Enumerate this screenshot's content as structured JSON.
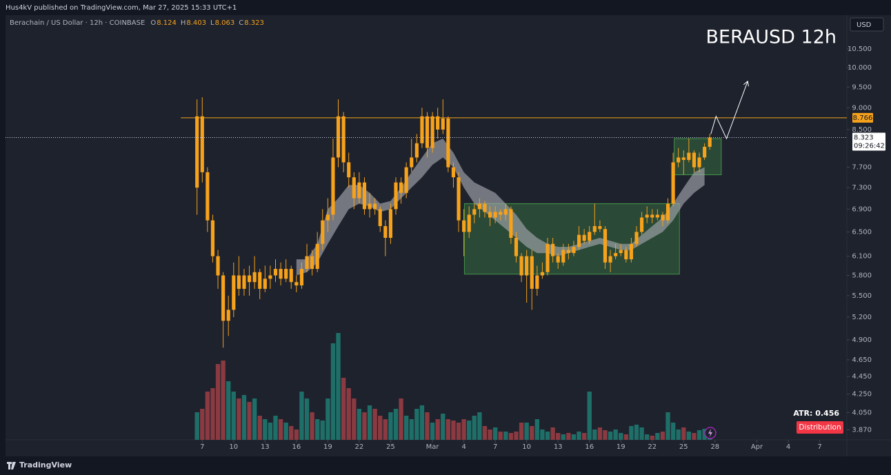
{
  "header": {
    "publisher": "Hus4kV published on TradingView.com, Mar 27, 2025 15:33 UTC+1"
  },
  "footer": {
    "brand": "TradingView"
  },
  "chart_data": {
    "type": "candlestick",
    "title": "BERAUSD 12h",
    "legend_title": "Berachain / US Dollar · 12h · COINBASE",
    "ohlc_labels": [
      "O",
      "H",
      "L",
      "C"
    ],
    "currency": "USD",
    "countdown": "09:26:42",
    "candle_color": "#f7a21b",
    "up_volume_color": "#1f6f69",
    "down_volume_color": "#8a3a40",
    "cloud_color": "#a3a6ad",
    "zone_color": "#4caf50",
    "resistance_color": "#f7a21b",
    "log_scale": true,
    "grid": false,
    "xlim": [
      -18.8,
      61.6
    ],
    "ylim": [
      3.77,
      11.47
    ],
    "volume_ylim": [
      0,
      160
    ],
    "xticks": [
      {
        "value": 0,
        "label": "7"
      },
      {
        "value": 3,
        "label": "10"
      },
      {
        "value": 6,
        "label": "13"
      },
      {
        "value": 9,
        "label": "16"
      },
      {
        "value": 12,
        "label": "19"
      },
      {
        "value": 15,
        "label": "22"
      },
      {
        "value": 18,
        "label": "25"
      },
      {
        "value": 22,
        "label": "Mar"
      },
      {
        "value": 25,
        "label": "4"
      },
      {
        "value": 28,
        "label": "7"
      },
      {
        "value": 31,
        "label": "10"
      },
      {
        "value": 34,
        "label": "13"
      },
      {
        "value": 37,
        "label": "16"
      },
      {
        "value": 40,
        "label": "19"
      },
      {
        "value": 43,
        "label": "22"
      },
      {
        "value": 46,
        "label": "25"
      },
      {
        "value": 49,
        "label": "28"
      },
      {
        "value": 53,
        "label": "Apr"
      },
      {
        "value": 56,
        "label": "4"
      },
      {
        "value": 59,
        "label": "7"
      }
    ],
    "yticks": [
      {
        "value": 10.5,
        "label": "10.500"
      },
      {
        "value": 10,
        "label": "10.000"
      },
      {
        "value": 9.5,
        "label": "9.500"
      },
      {
        "value": 9,
        "label": "9.000"
      },
      {
        "value": 8.5,
        "label": "8.500"
      },
      {
        "value": 7.7,
        "label": "7.700"
      },
      {
        "value": 7.3,
        "label": "7.300"
      },
      {
        "value": 6.9,
        "label": "6.900"
      },
      {
        "value": 6.5,
        "label": "6.500"
      },
      {
        "value": 6.1,
        "label": "6.100"
      },
      {
        "value": 5.8,
        "label": "5.800"
      },
      {
        "value": 5.5,
        "label": "5.500"
      },
      {
        "value": 5.2,
        "label": "5.200"
      },
      {
        "value": 4.9,
        "label": "4.900"
      },
      {
        "value": 4.65,
        "label": "4.650"
      },
      {
        "value": 4.45,
        "label": "4.450"
      },
      {
        "value": 4.25,
        "label": "4.250"
      },
      {
        "value": 4.05,
        "label": "4.050"
      },
      {
        "value": 3.87,
        "label": "3.870"
      }
    ],
    "x": [
      -0.5,
      0,
      0.5,
      1,
      1.5,
      2,
      2.5,
      3,
      3.5,
      4,
      4.5,
      5,
      5.5,
      6,
      6.5,
      7,
      7.5,
      8,
      8.5,
      9,
      9.5,
      10,
      10.5,
      11,
      11.5,
      12,
      12.5,
      13,
      13.5,
      14,
      14.5,
      15,
      15.5,
      16,
      16.5,
      17,
      17.5,
      18,
      18.5,
      19,
      19.5,
      20,
      20.5,
      21,
      21.5,
      22,
      22.5,
      23,
      23.5,
      24,
      24.5,
      25,
      25.5,
      26,
      26.5,
      27,
      27.5,
      28,
      28.5,
      29,
      29.5,
      30,
      30.5,
      31,
      31.5,
      32,
      32.5,
      33,
      33.5,
      34,
      34.5,
      35,
      35.5,
      36,
      36.5,
      37,
      37.5,
      38,
      38.5,
      39,
      39.5,
      40,
      40.5,
      41,
      41.5,
      42,
      42.5,
      43,
      43.5,
      44,
      44.5,
      45,
      45.5,
      46,
      46.5,
      47,
      47.5,
      48,
      48.5
    ],
    "open": [
      7.3,
      8.8,
      7.6,
      6.7,
      6.1,
      5.8,
      5.15,
      5.3,
      5.8,
      5.6,
      5.8,
      5.7,
      5.85,
      5.6,
      5.75,
      5.8,
      5.9,
      5.75,
      5.9,
      5.7,
      5.65,
      5.9,
      6.1,
      5.9,
      6.3,
      6.7,
      6.8,
      7.9,
      8.8,
      7.8,
      7.5,
      7.1,
      7.4,
      6.9,
      7.0,
      6.9,
      6.6,
      6.4,
      6.9,
      7.4,
      7.2,
      7.7,
      7.9,
      8.2,
      8.8,
      8.1,
      8.8,
      8.5,
      8.75,
      7.7,
      7.5,
      6.7,
      6.5,
      6.8,
      6.9,
      7.0,
      6.85,
      6.75,
      6.85,
      6.8,
      6.9,
      6.4,
      6.1,
      5.8,
      6.1,
      5.6,
      5.8,
      5.85,
      6.3,
      6.1,
      6.0,
      6.2,
      6.15,
      6.25,
      6.45,
      6.35,
      6.5,
      6.6,
      6.55,
      6.0,
      6.1,
      6.15,
      6.2,
      6.05,
      6.3,
      6.5,
      6.75,
      6.8,
      6.75,
      6.8,
      6.7,
      7.0,
      7.8,
      7.9,
      7.85,
      8.0,
      7.7,
      7.9,
      8.124
    ],
    "high": [
      9.2,
      9.25,
      7.7,
      6.8,
      6.2,
      5.85,
      5.5,
      6.0,
      6.1,
      5.9,
      5.95,
      6.1,
      5.9,
      5.95,
      5.95,
      6.05,
      6.0,
      6.05,
      5.95,
      5.8,
      6.0,
      6.3,
      6.2,
      6.5,
      6.9,
      7.1,
      8.3,
      9.2,
      8.9,
      8.0,
      7.6,
      7.6,
      7.5,
      7.2,
      7.1,
      6.95,
      6.7,
      7.0,
      7.5,
      7.5,
      7.8,
      8.3,
      8.4,
      9.0,
      8.9,
      8.9,
      9.0,
      9.2,
      8.8,
      7.8,
      7.6,
      6.9,
      6.95,
      7.0,
      7.1,
      7.05,
      6.95,
      6.95,
      6.9,
      7.0,
      6.95,
      6.5,
      6.15,
      6.2,
      6.2,
      5.95,
      6.0,
      6.4,
      6.4,
      6.15,
      6.3,
      6.3,
      6.35,
      6.6,
      6.55,
      6.6,
      7.0,
      6.7,
      6.6,
      6.2,
      6.3,
      6.3,
      6.25,
      6.4,
      6.6,
      6.85,
      6.95,
      6.9,
      6.9,
      6.85,
      7.1,
      8.0,
      8.1,
      8.05,
      8.3,
      8.05,
      8.0,
      8.2,
      8.403
    ],
    "low": [
      6.8,
      7.4,
      6.5,
      6.0,
      5.6,
      4.8,
      4.95,
      5.2,
      5.5,
      5.5,
      5.5,
      5.6,
      5.45,
      5.55,
      5.6,
      5.7,
      5.65,
      5.7,
      5.6,
      5.55,
      5.6,
      5.85,
      5.8,
      5.85,
      6.2,
      6.5,
      6.7,
      7.7,
      7.6,
      7.3,
      6.9,
      7.0,
      6.8,
      6.75,
      6.8,
      6.5,
      6.1,
      6.3,
      6.8,
      7.0,
      7.1,
      7.6,
      7.8,
      8.1,
      7.9,
      8.0,
      8.3,
      8.4,
      7.6,
      7.3,
      6.5,
      6.1,
      6.4,
      6.65,
      6.75,
      6.75,
      6.6,
      6.65,
      6.7,
      6.7,
      6.3,
      6.0,
      5.7,
      5.4,
      5.3,
      5.5,
      5.75,
      5.8,
      6.0,
      5.9,
      5.95,
      6.05,
      6.1,
      6.2,
      6.3,
      6.3,
      6.45,
      6.5,
      5.9,
      5.85,
      6.05,
      6.1,
      6.0,
      6.0,
      6.25,
      6.45,
      6.65,
      6.65,
      6.7,
      6.6,
      6.65,
      6.95,
      7.7,
      7.55,
      7.8,
      7.6,
      7.6,
      7.85,
      8.063
    ],
    "close": [
      8.8,
      7.6,
      6.7,
      6.1,
      5.8,
      5.15,
      5.3,
      5.8,
      5.6,
      5.8,
      5.7,
      5.85,
      5.6,
      5.75,
      5.8,
      5.9,
      5.75,
      5.9,
      5.7,
      5.65,
      5.9,
      6.1,
      5.9,
      6.3,
      6.7,
      6.8,
      7.9,
      8.8,
      7.8,
      7.5,
      7.1,
      7.4,
      6.9,
      7.0,
      6.9,
      6.6,
      6.4,
      6.9,
      7.4,
      7.2,
      7.7,
      7.9,
      8.2,
      8.8,
      8.1,
      8.8,
      8.5,
      8.75,
      7.7,
      7.5,
      6.7,
      6.5,
      6.8,
      6.9,
      7.0,
      6.85,
      6.75,
      6.85,
      6.8,
      6.9,
      6.4,
      6.1,
      5.8,
      6.1,
      5.6,
      5.8,
      5.85,
      6.3,
      6.1,
      6.0,
      6.2,
      6.15,
      6.25,
      6.45,
      6.35,
      6.5,
      6.6,
      6.55,
      6.0,
      6.1,
      6.15,
      6.2,
      6.05,
      6.3,
      6.5,
      6.75,
      6.8,
      6.75,
      6.8,
      6.7,
      7.0,
      7.8,
      7.9,
      7.85,
      8.0,
      7.7,
      7.9,
      8.124,
      8.323
    ],
    "volume": [
      40,
      45,
      70,
      75,
      110,
      115,
      85,
      70,
      60,
      65,
      55,
      60,
      35,
      30,
      25,
      35,
      30,
      25,
      20,
      15,
      70,
      60,
      40,
      30,
      28,
      60,
      140,
      155,
      90,
      75,
      60,
      45,
      40,
      50,
      45,
      35,
      30,
      40,
      45,
      60,
      35,
      30,
      45,
      50,
      40,
      25,
      30,
      38,
      30,
      28,
      25,
      30,
      28,
      35,
      40,
      20,
      15,
      18,
      12,
      12,
      10,
      12,
      25,
      25,
      20,
      30,
      15,
      12,
      18,
      10,
      8,
      10,
      8,
      12,
      10,
      70,
      15,
      18,
      14,
      12,
      15,
      10,
      8,
      20,
      22,
      18,
      8,
      6,
      10,
      12,
      40,
      25,
      15,
      18,
      12,
      10,
      14,
      16,
      8
    ],
    "cloud": {
      "x": [
        9,
        10,
        11,
        12,
        13,
        14,
        15,
        16,
        17,
        18,
        19,
        20,
        21,
        22,
        23,
        24,
        25,
        26,
        27,
        28,
        29,
        30,
        31,
        32,
        33,
        34,
        35,
        36,
        37,
        38,
        39,
        40,
        41,
        42,
        43,
        44,
        45,
        46,
        47,
        48
      ],
      "upper": [
        6.05,
        6.05,
        6.3,
        6.9,
        7.1,
        7.35,
        7.35,
        7.2,
        7.0,
        7.05,
        7.3,
        7.6,
        7.9,
        8.2,
        8.3,
        8.0,
        7.6,
        7.4,
        7.3,
        7.2,
        7.0,
        6.8,
        6.55,
        6.4,
        6.3,
        6.25,
        6.25,
        6.3,
        6.35,
        6.4,
        6.35,
        6.3,
        6.3,
        6.45,
        6.6,
        6.75,
        7.0,
        7.3,
        7.6,
        7.7
      ],
      "lower": [
        5.8,
        5.85,
        6.0,
        6.3,
        6.6,
        6.9,
        7.0,
        6.95,
        6.85,
        6.9,
        7.1,
        7.3,
        7.5,
        7.75,
        7.9,
        7.7,
        7.3,
        7.0,
        6.85,
        6.7,
        6.55,
        6.4,
        6.25,
        6.15,
        6.15,
        6.1,
        6.15,
        6.2,
        6.25,
        6.3,
        6.25,
        6.2,
        6.2,
        6.3,
        6.4,
        6.5,
        6.7,
        7.0,
        7.2,
        7.35
      ]
    },
    "zones": [
      {
        "x": [
          25.05,
          45.6
        ],
        "y": [
          5.82,
          7.0
        ]
      },
      {
        "x": [
          45.1,
          49.6
        ],
        "y": [
          7.55,
          8.3
        ]
      }
    ],
    "projection": {
      "x": [
        48.6,
        49.1,
        50.1,
        52.1
      ],
      "y": [
        8.4,
        8.8,
        8.3,
        9.63
      ]
    },
    "resistance": 8.766,
    "resistance_start_x": -2.05,
    "atr_label": "ATR:",
    "atr": 0.456,
    "badge": "Distribution"
  }
}
